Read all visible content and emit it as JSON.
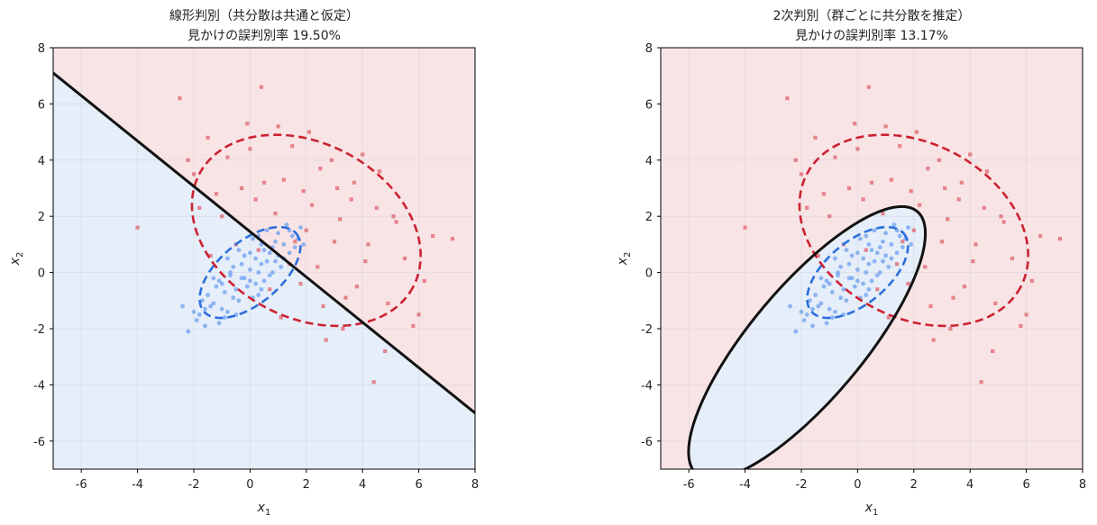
{
  "colors": {
    "group0": "#2b6fdc",
    "group0_light": "#6f9ff0",
    "group1": "#cc2233",
    "group1_light": "#e06a74",
    "region0": "#e5eef9",
    "region1": "#f9e4e5",
    "boundary": "#111111",
    "grid": "#d8d8e0"
  },
  "chart_data": [
    {
      "type": "scatter",
      "title_line1": "線形判別（共分散は共通と仮定）",
      "title_line2": "見かけの誤判別率 19.50%",
      "xlabel": "x1",
      "ylabel": "x2",
      "xlim": [
        -7,
        8
      ],
      "ylim": [
        -7,
        8
      ],
      "xticks": [
        -6,
        -4,
        -2,
        0,
        2,
        4,
        6,
        8
      ],
      "yticks": [
        -6,
        -4,
        -2,
        0,
        2,
        4,
        6,
        8
      ],
      "grid": true,
      "boundary": {
        "kind": "line",
        "points": [
          [
            -7,
            7.1
          ],
          [
            8,
            -5.0
          ]
        ]
      },
      "regions": {
        "upper_right": "group1",
        "lower_left": "group0"
      },
      "ellipses": [
        {
          "group": "group0",
          "center": [
            0,
            0
          ],
          "rx": 2.15,
          "ry": 1.1,
          "angle_deg": 40
        },
        {
          "group": "group1",
          "center": [
            2,
            1.5
          ],
          "rx": 4.3,
          "ry": 3.1,
          "angle_deg": -28
        }
      ]
    },
    {
      "type": "scatter",
      "title_line1": "2次判別（群ごとに共分散を推定）",
      "title_line2": "見かけの誤判別率 13.17%",
      "xlabel": "x1",
      "ylabel": "x2",
      "xlim": [
        -7,
        8
      ],
      "ylim": [
        -7,
        8
      ],
      "xticks": [
        -6,
        -4,
        -2,
        0,
        2,
        4,
        6,
        8
      ],
      "yticks": [
        -6,
        -4,
        -2,
        0,
        2,
        4,
        6,
        8
      ],
      "grid": true,
      "boundary": {
        "kind": "ellipse",
        "center": [
          -1.8,
          -2.5
        ],
        "rx": 6.1,
        "ry": 2.0,
        "angle_deg": 50
      },
      "regions": {
        "inside_boundary": "group0",
        "outside_boundary": "group1"
      },
      "ellipses": [
        {
          "group": "group0",
          "center": [
            0,
            0
          ],
          "rx": 2.15,
          "ry": 1.1,
          "angle_deg": 40
        },
        {
          "group": "group1",
          "center": [
            2,
            1.5
          ],
          "rx": 4.3,
          "ry": 3.1,
          "angle_deg": -28
        }
      ]
    }
  ],
  "scatter_points": {
    "group0": [
      [
        0.0,
        0.1
      ],
      [
        -0.3,
        -0.2
      ],
      [
        0.4,
        0.3
      ],
      [
        0.8,
        0.9
      ],
      [
        -0.9,
        -0.7
      ],
      [
        1.2,
        1.0
      ],
      [
        -1.3,
        -1.1
      ],
      [
        0.2,
        -0.4
      ],
      [
        0.5,
        0.8
      ],
      [
        -0.6,
        0.2
      ],
      [
        1.5,
        1.3
      ],
      [
        -1.8,
        -1.5
      ],
      [
        0.9,
        0.4
      ],
      [
        -0.2,
        0.6
      ],
      [
        0.3,
        -0.8
      ],
      [
        -1.1,
        -0.3
      ],
      [
        1.8,
        1.6
      ],
      [
        -2.0,
        -1.4
      ],
      [
        0.1,
        1.2
      ],
      [
        -0.4,
        -1.0
      ],
      [
        0.7,
        -0.1
      ],
      [
        -0.8,
        0.5
      ],
      [
        1.1,
        0.2
      ],
      [
        -1.5,
        -0.8
      ],
      [
        0.6,
        1.5
      ],
      [
        -0.1,
        -0.5
      ],
      [
        1.4,
        0.7
      ],
      [
        -1.6,
        -1.9
      ],
      [
        0.0,
        0.7
      ],
      [
        -0.5,
        -0.6
      ],
      [
        0.3,
        0.0
      ],
      [
        -1.0,
        -1.3
      ],
      [
        1.0,
        1.4
      ],
      [
        -0.7,
        -0.1
      ],
      [
        0.8,
        0.0
      ],
      [
        -1.2,
        -0.5
      ],
      [
        0.4,
        1.0
      ],
      [
        -0.3,
        0.3
      ],
      [
        1.6,
        0.9
      ],
      [
        -2.2,
        -2.1
      ],
      [
        -0.9,
        -1.6
      ],
      [
        0.2,
        0.5
      ],
      [
        -1.4,
        -1.2
      ],
      [
        1.3,
        1.7
      ],
      [
        -0.6,
        -0.9
      ],
      [
        0.5,
        -0.3
      ],
      [
        -1.7,
        -1.0
      ],
      [
        0.9,
        1.1
      ],
      [
        -0.2,
        -0.2
      ],
      [
        0.6,
        0.4
      ],
      [
        -1.9,
        -1.7
      ],
      [
        1.7,
        1.2
      ],
      [
        -0.4,
        0.8
      ],
      [
        0.1,
        -0.9
      ],
      [
        -1.0,
        -0.4
      ],
      [
        1.2,
        0.5
      ],
      [
        -0.8,
        -1.4
      ],
      [
        0.3,
        1.3
      ],
      [
        -1.3,
        -0.2
      ],
      [
        0.7,
        0.7
      ],
      [
        -2.4,
        -1.2
      ],
      [
        1.9,
        1.0
      ],
      [
        -0.5,
        -1.5
      ],
      [
        0.0,
        -0.3
      ],
      [
        -1.1,
        -1.8
      ],
      [
        1.4,
        1.5
      ],
      [
        -0.7,
        0.0
      ],
      [
        0.4,
        -0.6
      ],
      [
        -1.6,
        -1.3
      ],
      [
        1.0,
        0.6
      ]
    ],
    "group1": [
      [
        2.0,
        1.5
      ],
      [
        3.1,
        3.0
      ],
      [
        0.5,
        3.2
      ],
      [
        4.2,
        1.0
      ],
      [
        -1.2,
        2.8
      ],
      [
        1.5,
        4.5
      ],
      [
        3.8,
        -0.5
      ],
      [
        5.1,
        2.0
      ],
      [
        -0.5,
        1.0
      ],
      [
        2.6,
        -1.2
      ],
      [
        1.0,
        5.2
      ],
      [
        4.6,
        3.6
      ],
      [
        -2.0,
        3.5
      ],
      [
        3.3,
        -2.0
      ],
      [
        0.3,
        0.8
      ],
      [
        6.0,
        -1.5
      ],
      [
        -1.5,
        4.8
      ],
      [
        2.2,
        2.4
      ],
      [
        1.8,
        -0.4
      ],
      [
        4.0,
        4.2
      ],
      [
        0.9,
        2.1
      ],
      [
        -0.8,
        4.1
      ],
      [
        5.5,
        0.5
      ],
      [
        3.0,
        1.1
      ],
      [
        -2.5,
        6.2
      ],
      [
        0.4,
        6.6
      ],
      [
        4.8,
        -2.8
      ],
      [
        6.5,
        1.3
      ],
      [
        7.2,
        1.2
      ],
      [
        -4.0,
        1.6
      ],
      [
        1.2,
        3.3
      ],
      [
        2.9,
        4.0
      ],
      [
        -1.0,
        2.0
      ],
      [
        3.6,
        2.6
      ],
      [
        0.0,
        4.4
      ],
      [
        2.4,
        0.2
      ],
      [
        4.4,
        -3.9
      ],
      [
        5.8,
        -1.9
      ],
      [
        -0.3,
        3.0
      ],
      [
        1.6,
        1.1
      ],
      [
        3.4,
        -0.9
      ],
      [
        2.1,
        5.0
      ],
      [
        -1.8,
        2.3
      ],
      [
        4.1,
        0.4
      ],
      [
        0.7,
        -0.6
      ],
      [
        5.2,
        1.8
      ],
      [
        1.9,
        2.9
      ],
      [
        -0.1,
        5.3
      ],
      [
        3.7,
        3.2
      ],
      [
        2.7,
        -2.4
      ],
      [
        1.4,
        0.3
      ],
      [
        -2.2,
        4.0
      ],
      [
        4.9,
        -1.1
      ],
      [
        0.2,
        2.6
      ],
      [
        3.2,
        1.9
      ],
      [
        6.2,
        -0.3
      ],
      [
        1.1,
        -1.6
      ],
      [
        2.5,
        3.7
      ],
      [
        -1.4,
        0.6
      ],
      [
        4.5,
        2.3
      ]
    ]
  }
}
